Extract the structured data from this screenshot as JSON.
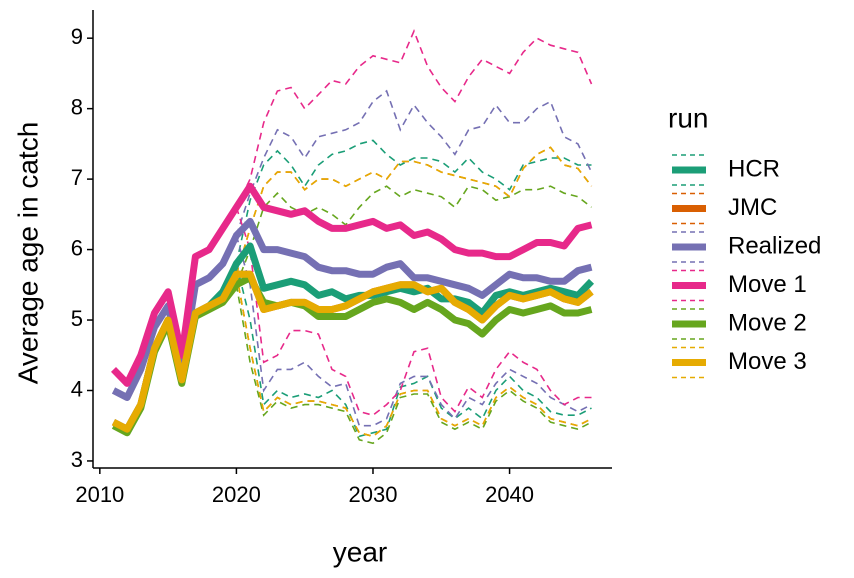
{
  "chart_data": {
    "type": "line",
    "x": [
      2011,
      2012,
      2013,
      2014,
      2015,
      2016,
      2017,
      2018,
      2019,
      2020,
      2021,
      2022,
      2023,
      2024,
      2025,
      2026,
      2027,
      2028,
      2029,
      2030,
      2031,
      2032,
      2033,
      2034,
      2035,
      2036,
      2037,
      2038,
      2039,
      2040,
      2041,
      2042,
      2043,
      2044,
      2045,
      2046
    ],
    "x_label": "year",
    "y_label": "Average age in catch",
    "legend_title": "run",
    "legend": "right",
    "xlim": [
      2009.5,
      2047.5
    ],
    "xticks": [
      2010,
      2020,
      2030,
      2040
    ],
    "ylim": [
      2.9,
      9.4
    ],
    "yticks": [
      3,
      4,
      5,
      6,
      7,
      8,
      9
    ],
    "series": [
      {
        "name": "HCR",
        "color": "#1b9e77",
        "values": [
          3.55,
          3.45,
          3.8,
          4.6,
          5.0,
          4.15,
          5.1,
          5.2,
          5.4,
          5.8,
          6.05,
          5.45,
          5.5,
          5.55,
          5.5,
          5.35,
          5.4,
          5.3,
          5.35,
          5.35,
          5.4,
          5.45,
          5.4,
          5.45,
          5.3,
          5.3,
          5.25,
          5.1,
          5.35,
          5.4,
          5.35,
          5.4,
          5.45,
          5.4,
          5.35,
          5.55
        ],
        "upper": [
          null,
          null,
          null,
          null,
          null,
          null,
          null,
          null,
          null,
          5.8,
          6.7,
          7.2,
          7.4,
          7.2,
          6.9,
          7.2,
          7.35,
          7.4,
          7.5,
          7.55,
          7.35,
          7.2,
          7.3,
          7.3,
          7.25,
          7.1,
          7.3,
          7.1,
          7.0,
          6.85,
          7.2,
          7.25,
          7.3,
          7.3,
          7.2,
          7.2
        ],
        "lower": [
          null,
          null,
          null,
          null,
          null,
          null,
          null,
          null,
          null,
          5.8,
          5.0,
          3.8,
          4.0,
          3.9,
          3.95,
          3.9,
          4.0,
          3.8,
          3.35,
          3.4,
          3.45,
          4.05,
          4.1,
          4.2,
          3.75,
          3.6,
          3.75,
          3.6,
          4.0,
          4.2,
          4.0,
          3.9,
          3.7,
          3.65,
          3.65,
          3.75
        ]
      },
      {
        "name": "JMC",
        "color": "#d95f02",
        "values": [
          3.55,
          3.45,
          3.8,
          4.6,
          5.0,
          4.15,
          5.1,
          5.2,
          5.3,
          5.65,
          5.65,
          5.15,
          5.2,
          5.25,
          5.25,
          5.15,
          5.15,
          5.2,
          5.3,
          5.4,
          5.45,
          5.5,
          5.5,
          5.4,
          5.45,
          5.25,
          5.15,
          5.0,
          5.2,
          5.35,
          5.3,
          5.35,
          5.4,
          5.3,
          5.25,
          5.4
        ],
        "upper": [
          null,
          null,
          null,
          null,
          null,
          null,
          null,
          null,
          null,
          5.65,
          6.3,
          6.9,
          7.1,
          7.1,
          6.85,
          7.0,
          7.0,
          6.9,
          7.0,
          7.1,
          7.0,
          7.25,
          7.25,
          7.2,
          7.1,
          7.05,
          7.0,
          6.95,
          6.9,
          6.75,
          7.15,
          7.35,
          7.45,
          7.2,
          7.15,
          6.9
        ],
        "lower": [
          null,
          null,
          null,
          null,
          null,
          null,
          null,
          null,
          null,
          5.65,
          4.6,
          3.7,
          3.9,
          3.8,
          3.85,
          3.85,
          3.8,
          3.75,
          3.4,
          3.35,
          3.5,
          3.95,
          4.0,
          4.0,
          3.6,
          3.5,
          3.6,
          3.5,
          3.9,
          4.05,
          3.9,
          3.8,
          3.6,
          3.55,
          3.5,
          3.6
        ]
      },
      {
        "name": "Realized",
        "color": "#7570b3",
        "values": [
          4.0,
          3.9,
          4.3,
          4.9,
          5.2,
          4.3,
          5.5,
          5.6,
          5.8,
          6.2,
          6.4,
          6.0,
          6.0,
          5.95,
          5.9,
          5.75,
          5.7,
          5.7,
          5.65,
          5.65,
          5.75,
          5.8,
          5.6,
          5.6,
          5.55,
          5.5,
          5.45,
          5.35,
          5.5,
          5.65,
          5.6,
          5.6,
          5.55,
          5.55,
          5.7,
          5.75
        ],
        "upper": [
          null,
          null,
          null,
          null,
          null,
          null,
          null,
          null,
          null,
          6.2,
          6.8,
          7.3,
          7.7,
          7.6,
          7.3,
          7.6,
          7.65,
          7.7,
          7.8,
          8.1,
          8.25,
          7.7,
          8.05,
          7.8,
          7.6,
          7.35,
          7.7,
          7.75,
          8.05,
          7.8,
          7.8,
          8.0,
          8.1,
          7.6,
          7.5,
          7.1
        ],
        "lower": [
          null,
          null,
          null,
          null,
          null,
          null,
          null,
          null,
          null,
          6.2,
          5.5,
          4.0,
          4.3,
          4.3,
          4.4,
          4.2,
          4.05,
          4.1,
          3.5,
          3.5,
          3.6,
          4.1,
          4.2,
          4.2,
          3.8,
          3.6,
          3.9,
          3.8,
          4.1,
          4.3,
          4.2,
          4.1,
          3.9,
          3.8,
          3.7,
          3.8
        ]
      },
      {
        "name": "Move 1",
        "color": "#e7298a",
        "values": [
          4.3,
          4.1,
          4.5,
          5.1,
          5.4,
          4.5,
          5.9,
          6.0,
          6.3,
          6.6,
          6.9,
          6.6,
          6.55,
          6.5,
          6.55,
          6.4,
          6.3,
          6.3,
          6.35,
          6.4,
          6.3,
          6.35,
          6.2,
          6.25,
          6.15,
          6.0,
          5.95,
          5.95,
          5.9,
          5.9,
          6.0,
          6.1,
          6.1,
          6.05,
          6.3,
          6.35
        ],
        "upper": [
          null,
          null,
          null,
          null,
          null,
          null,
          null,
          null,
          null,
          6.6,
          7.0,
          7.8,
          8.25,
          8.3,
          8.0,
          8.2,
          8.4,
          8.35,
          8.6,
          8.75,
          8.7,
          8.65,
          9.1,
          8.6,
          8.3,
          8.1,
          8.45,
          8.7,
          8.6,
          8.5,
          8.8,
          9.0,
          8.9,
          8.85,
          8.8,
          8.35
        ],
        "lower": [
          null,
          null,
          null,
          null,
          null,
          null,
          null,
          null,
          null,
          6.6,
          6.0,
          4.4,
          4.5,
          4.85,
          4.85,
          4.8,
          4.3,
          4.2,
          3.7,
          3.65,
          3.8,
          4.0,
          4.55,
          4.6,
          3.9,
          3.7,
          4.05,
          3.9,
          4.3,
          4.55,
          4.4,
          4.3,
          4.0,
          3.8,
          3.9,
          3.9
        ]
      },
      {
        "name": "Move 2",
        "color": "#66a61e",
        "values": [
          3.5,
          3.4,
          3.75,
          4.55,
          4.95,
          4.1,
          5.05,
          5.15,
          5.25,
          5.5,
          5.6,
          5.25,
          5.2,
          5.25,
          5.2,
          5.05,
          5.05,
          5.05,
          5.15,
          5.25,
          5.3,
          5.25,
          5.15,
          5.25,
          5.15,
          5.0,
          4.95,
          4.8,
          5.0,
          5.15,
          5.1,
          5.15,
          5.2,
          5.1,
          5.1,
          5.15
        ],
        "upper": [
          null,
          null,
          null,
          null,
          null,
          null,
          null,
          null,
          null,
          5.5,
          6.0,
          6.6,
          6.8,
          6.6,
          6.5,
          6.6,
          6.5,
          6.35,
          6.6,
          6.8,
          6.9,
          6.75,
          6.85,
          6.8,
          6.75,
          6.6,
          6.9,
          6.85,
          6.7,
          6.75,
          6.85,
          6.85,
          6.9,
          6.8,
          6.75,
          6.6
        ],
        "lower": [
          null,
          null,
          null,
          null,
          null,
          null,
          null,
          null,
          null,
          5.5,
          4.4,
          3.65,
          3.85,
          3.75,
          3.8,
          3.8,
          3.75,
          3.7,
          3.3,
          3.25,
          3.4,
          3.9,
          3.95,
          3.95,
          3.55,
          3.45,
          3.55,
          3.45,
          3.85,
          4.0,
          3.85,
          3.75,
          3.55,
          3.5,
          3.45,
          3.55
        ]
      },
      {
        "name": "Move 3",
        "color": "#e6ab02",
        "values": [
          3.55,
          3.45,
          3.8,
          4.6,
          5.0,
          4.15,
          5.1,
          5.2,
          5.3,
          5.65,
          5.65,
          5.15,
          5.2,
          5.25,
          5.25,
          5.15,
          5.15,
          5.2,
          5.3,
          5.4,
          5.45,
          5.5,
          5.5,
          5.4,
          5.45,
          5.25,
          5.15,
          5.0,
          5.2,
          5.35,
          5.3,
          5.35,
          5.4,
          5.3,
          5.25,
          5.4
        ],
        "upper": [
          null,
          null,
          null,
          null,
          null,
          null,
          null,
          null,
          null,
          5.65,
          6.3,
          6.9,
          7.1,
          7.1,
          6.85,
          7.0,
          7.0,
          6.9,
          7.0,
          7.1,
          7.0,
          7.25,
          7.25,
          7.2,
          7.1,
          7.05,
          7.0,
          6.95,
          6.9,
          6.75,
          7.15,
          7.35,
          7.45,
          7.2,
          7.15,
          6.9
        ],
        "lower": [
          null,
          null,
          null,
          null,
          null,
          null,
          null,
          null,
          null,
          5.65,
          4.6,
          3.7,
          3.9,
          3.8,
          3.85,
          3.85,
          3.8,
          3.75,
          3.4,
          3.35,
          3.5,
          3.95,
          4.0,
          4.0,
          3.6,
          3.5,
          3.6,
          3.5,
          3.9,
          4.05,
          3.9,
          3.8,
          3.6,
          3.55,
          3.5,
          3.6
        ]
      }
    ]
  }
}
